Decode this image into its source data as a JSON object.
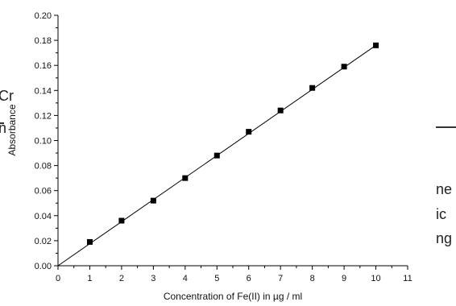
{
  "background_text": {
    "left_top": "Cr",
    "left_bottom": "n",
    "right_line1": "ne",
    "right_line2": "ic",
    "right_line3": "ng"
  },
  "chart_data": {
    "type": "scatter",
    "title": "",
    "xlabel": "Concentration of Fe(II) in µg / ml",
    "ylabel": "Absorbance",
    "xlim": [
      0,
      11
    ],
    "ylim": [
      0,
      0.2
    ],
    "x_ticks": [
      0,
      1,
      2,
      3,
      4,
      5,
      6,
      7,
      8,
      9,
      10,
      11
    ],
    "y_ticks": [
      "0.00",
      "0.02",
      "0.04",
      "0.06",
      "0.08",
      "0.10",
      "0.12",
      "0.14",
      "0.16",
      "0.18",
      "0.20"
    ],
    "series": [
      {
        "x": [
          1,
          2,
          3,
          4,
          5,
          6,
          7,
          8,
          9,
          10
        ],
        "y": [
          0.019,
          0.036,
          0.052,
          0.07,
          0.088,
          0.107,
          0.124,
          0.142,
          0.159,
          0.176
        ],
        "marker": "square",
        "color": "#000000"
      }
    ],
    "fit_line": {
      "from": [
        0,
        0.0
      ],
      "to": [
        10,
        0.176
      ],
      "color": "#000000"
    },
    "grid": false,
    "legend": "none"
  }
}
